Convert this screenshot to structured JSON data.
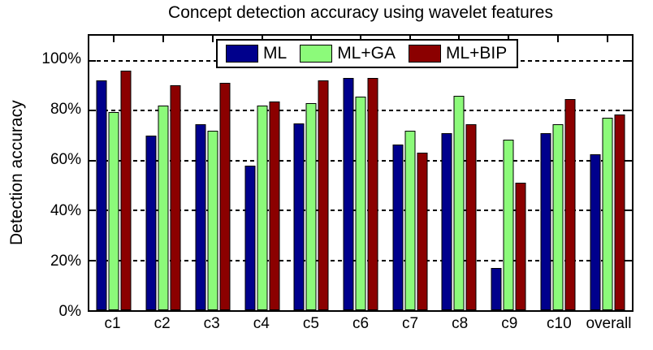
{
  "title": "Concept detection accuracy using wavelet features",
  "y_axis_label": "Detection accuracy",
  "chart_data": {
    "type": "bar",
    "title": "Concept detection accuracy using wavelet features",
    "xlabel": "",
    "ylabel": "Detection accuracy",
    "categories": [
      "c1",
      "c2",
      "c3",
      "c4",
      "c5",
      "c6",
      "c7",
      "c8",
      "c9",
      "c10",
      "overall"
    ],
    "series": [
      {
        "name": "ML",
        "color": "#00008C",
        "values": [
          92,
          70,
          74.5,
          58,
          75,
          93,
          66.5,
          71,
          17,
          71,
          62.5
        ]
      },
      {
        "name": "ML+GA",
        "color": "#8CFA7A",
        "values": [
          79.5,
          82,
          72,
          82,
          83,
          85.5,
          72,
          86,
          68.5,
          74.5,
          77
        ]
      },
      {
        "name": "ML+BIP",
        "color": "#8B0000",
        "values": [
          96,
          90,
          91,
          83.5,
          92,
          93,
          63,
          74.5,
          51,
          84.5,
          78.5
        ]
      }
    ],
    "y_ticks": [
      {
        "value": 0,
        "label": "0%"
      },
      {
        "value": 20,
        "label": "20%"
      },
      {
        "value": 40,
        "label": "40%"
      },
      {
        "value": 60,
        "label": "60%"
      },
      {
        "value": 80,
        "label": "80%"
      },
      {
        "value": 100,
        "label": "100%"
      }
    ],
    "ylim": [
      0,
      110
    ],
    "grid": "horizontal dashed black lines at 20% intervals",
    "legend_position": "top-center-inside",
    "axis_color": "#000000",
    "background_color": "#ffffff"
  }
}
